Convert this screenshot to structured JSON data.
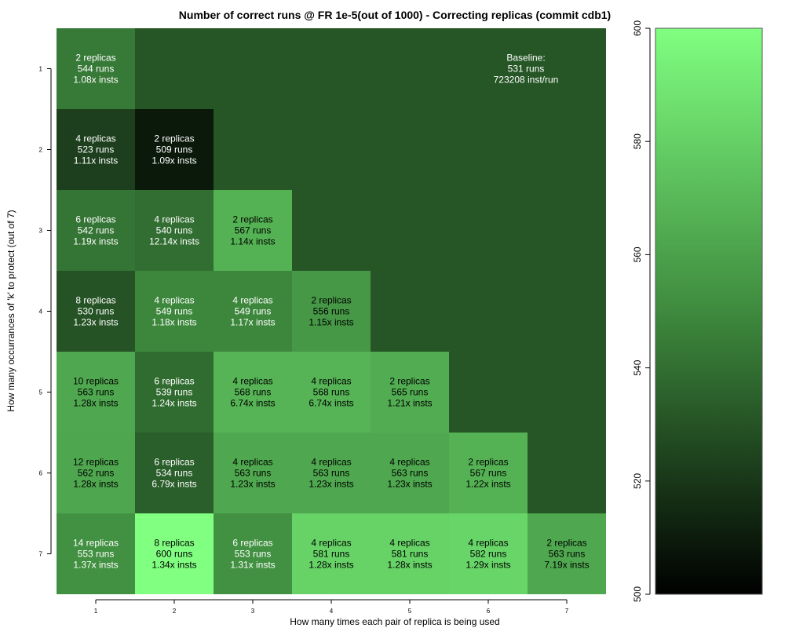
{
  "chart_data": {
    "type": "heatmap",
    "title": "Number of correct runs @ FR 1e-5(out of 1000) - Correcting replicas (commit cdb1)",
    "xlabel": "How many times each pair of replica is being used",
    "ylabel": "How many occurrances of 'k' to protect (out of 7)",
    "x_ticks": [
      "1",
      "2",
      "3",
      "4",
      "5",
      "6",
      "7"
    ],
    "y_ticks": [
      "1",
      "2",
      "3",
      "4",
      "5",
      "6",
      "7"
    ],
    "value_range": [
      500,
      600
    ],
    "colorbar_ticks": [
      "500",
      "520",
      "540",
      "560",
      "580",
      "600"
    ],
    "background_value": 531,
    "baseline": {
      "line1": "Baseline:",
      "line2": "531 runs",
      "line3": "723208 inst/run"
    },
    "cells": [
      {
        "x": 1,
        "y": 1,
        "value": 544,
        "replicas": "2 replicas",
        "runs": "544 runs",
        "insts": "1.08x insts"
      },
      {
        "x": 1,
        "y": 2,
        "value": 523,
        "replicas": "4 replicas",
        "runs": "523 runs",
        "insts": "1.11x insts"
      },
      {
        "x": 2,
        "y": 2,
        "value": 509,
        "replicas": "2 replicas",
        "runs": "509 runs",
        "insts": "1.09x insts"
      },
      {
        "x": 1,
        "y": 3,
        "value": 542,
        "replicas": "6 replicas",
        "runs": "542 runs",
        "insts": "1.19x insts"
      },
      {
        "x": 2,
        "y": 3,
        "value": 540,
        "replicas": "4 replicas",
        "runs": "540 runs",
        "insts": "12.14x insts"
      },
      {
        "x": 3,
        "y": 3,
        "value": 567,
        "replicas": "2 replicas",
        "runs": "567 runs",
        "insts": "1.14x insts"
      },
      {
        "x": 1,
        "y": 4,
        "value": 530,
        "replicas": "8 replicas",
        "runs": "530 runs",
        "insts": "1.23x insts"
      },
      {
        "x": 2,
        "y": 4,
        "value": 549,
        "replicas": "4 replicas",
        "runs": "549 runs",
        "insts": "1.18x insts"
      },
      {
        "x": 3,
        "y": 4,
        "value": 549,
        "replicas": "4 replicas",
        "runs": "549 runs",
        "insts": "1.17x insts"
      },
      {
        "x": 4,
        "y": 4,
        "value": 556,
        "replicas": "2 replicas",
        "runs": "556 runs",
        "insts": "1.15x insts"
      },
      {
        "x": 1,
        "y": 5,
        "value": 563,
        "replicas": "10 replicas",
        "runs": "563 runs",
        "insts": "1.28x insts"
      },
      {
        "x": 2,
        "y": 5,
        "value": 539,
        "replicas": "6 replicas",
        "runs": "539 runs",
        "insts": "1.24x insts"
      },
      {
        "x": 3,
        "y": 5,
        "value": 568,
        "replicas": "4 replicas",
        "runs": "568 runs",
        "insts": "6.74x insts"
      },
      {
        "x": 4,
        "y": 5,
        "value": 568,
        "replicas": "4 replicas",
        "runs": "568 runs",
        "insts": "6.74x insts"
      },
      {
        "x": 5,
        "y": 5,
        "value": 565,
        "replicas": "2 replicas",
        "runs": "565 runs",
        "insts": "1.21x insts"
      },
      {
        "x": 1,
        "y": 6,
        "value": 562,
        "replicas": "12 replicas",
        "runs": "562 runs",
        "insts": "1.28x insts"
      },
      {
        "x": 2,
        "y": 6,
        "value": 534,
        "replicas": "6 replicas",
        "runs": "534 runs",
        "insts": "6.79x insts"
      },
      {
        "x": 3,
        "y": 6,
        "value": 563,
        "replicas": "4 replicas",
        "runs": "563 runs",
        "insts": "1.23x insts"
      },
      {
        "x": 4,
        "y": 6,
        "value": 563,
        "replicas": "4 replicas",
        "runs": "563 runs",
        "insts": "1.23x insts"
      },
      {
        "x": 5,
        "y": 6,
        "value": 563,
        "replicas": "4 replicas",
        "runs": "563 runs",
        "insts": "1.23x insts"
      },
      {
        "x": 6,
        "y": 6,
        "value": 567,
        "replicas": "2 replicas",
        "runs": "567 runs",
        "insts": "1.22x insts"
      },
      {
        "x": 1,
        "y": 7,
        "value": 553,
        "replicas": "14 replicas",
        "runs": "553 runs",
        "insts": "1.37x insts"
      },
      {
        "x": 2,
        "y": 7,
        "value": 600,
        "replicas": "8 replicas",
        "runs": "600 runs",
        "insts": "1.34x insts"
      },
      {
        "x": 3,
        "y": 7,
        "value": 553,
        "replicas": "6 replicas",
        "runs": "553 runs",
        "insts": "1.31x insts"
      },
      {
        "x": 4,
        "y": 7,
        "value": 581,
        "replicas": "4 replicas",
        "runs": "581 runs",
        "insts": "1.28x insts"
      },
      {
        "x": 5,
        "y": 7,
        "value": 581,
        "replicas": "4 replicas",
        "runs": "581 runs",
        "insts": "1.28x insts"
      },
      {
        "x": 6,
        "y": 7,
        "value": 582,
        "replicas": "4 replicas",
        "runs": "582 runs",
        "insts": "1.29x insts"
      },
      {
        "x": 7,
        "y": 7,
        "value": 563,
        "replicas": "2 replicas",
        "runs": "563 runs",
        "insts": "7.19x insts"
      }
    ],
    "colors": {
      "low": "#000000",
      "mid": "#3e8a3e",
      "high": "#80ff80",
      "text_light": "#ffffff",
      "text_dark": "#000000"
    },
    "grid": false,
    "legend": "right colorbar"
  }
}
